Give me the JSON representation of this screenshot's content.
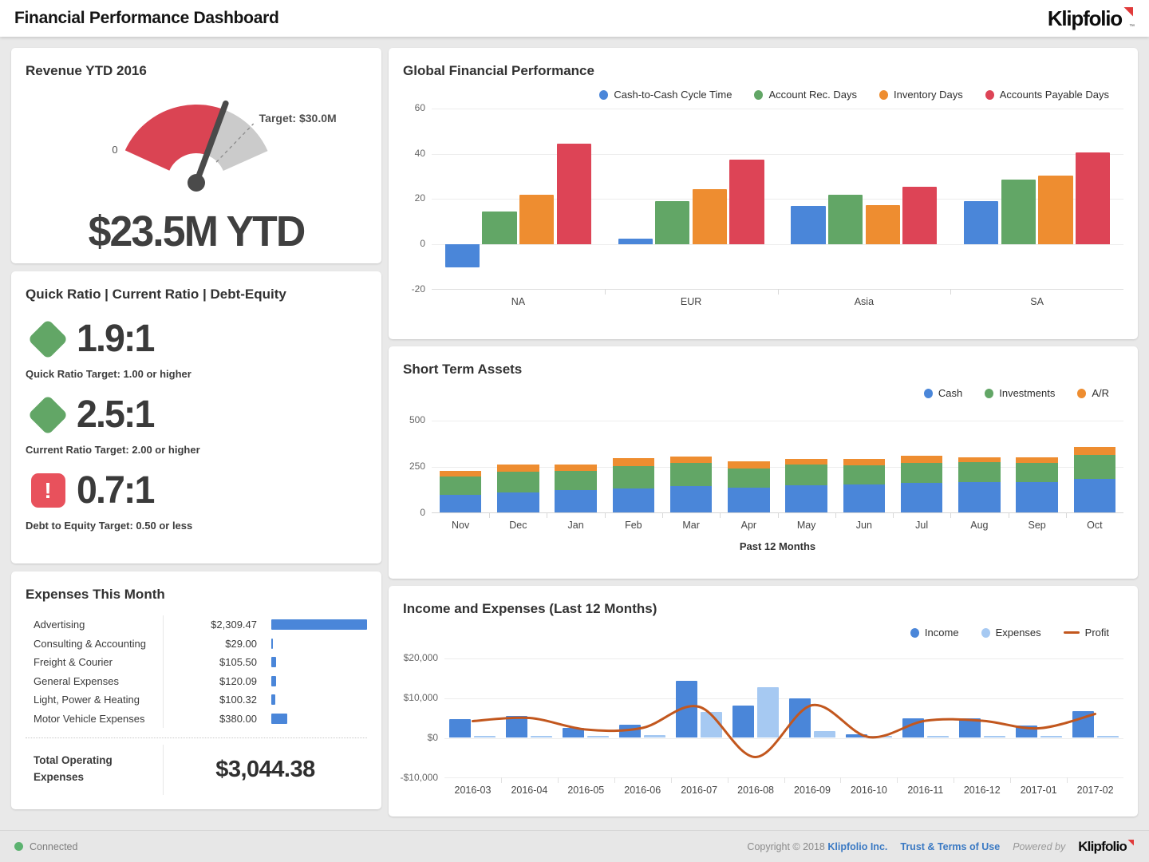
{
  "header": {
    "title": "Financial Performance Dashboard",
    "brand": "Klipfolio"
  },
  "revenue_card": {
    "title": "Revenue YTD 2016",
    "gauge": {
      "zero_label": "0",
      "target_label": "Target: $30.0M",
      "value_text": "$23.5M YTD",
      "value": 23.5,
      "target": 30,
      "max": 36
    }
  },
  "ratios_card": {
    "title": "Quick Ratio | Current Ratio | Debt-Equity",
    "items": [
      {
        "icon": "diamond",
        "value": "1.9:1",
        "caption": "Quick Ratio Target: 1.00 or higher"
      },
      {
        "icon": "diamond",
        "value": "2.5:1",
        "caption": "Current Ratio Target: 2.00 or higher"
      },
      {
        "icon": "alert",
        "value": "0.7:1",
        "caption": "Debt to Equity Target: 0.50 or less"
      }
    ]
  },
  "expenses_card": {
    "title": "Expenses This Month",
    "rows": [
      {
        "label": "Advertising",
        "amount": "$2,309.47",
        "value": 2309.47
      },
      {
        "label": "Consulting & Accounting",
        "amount": "$29.00",
        "value": 29.0
      },
      {
        "label": "Freight & Courier",
        "amount": "$105.50",
        "value": 105.5
      },
      {
        "label": "General Expenses",
        "amount": "$120.09",
        "value": 120.09
      },
      {
        "label": "Light, Power & Heating",
        "amount": "$100.32",
        "value": 100.32
      },
      {
        "label": "Motor Vehicle Expenses",
        "amount": "$380.00",
        "value": 380.0
      }
    ],
    "total_label": "Total Operating Expenses",
    "total_amount": "$3,044.38"
  },
  "chart_data": [
    {
      "id": "global",
      "type": "bar",
      "title": "Global Financial Performance",
      "categories": [
        "NA",
        "EUR",
        "Asia",
        "SA"
      ],
      "series": [
        {
          "name": "Cash-to-Cash Cycle Time",
          "color": "#4a86d9",
          "values": [
            -10,
            2.5,
            17,
            19
          ]
        },
        {
          "name": "Account Rec. Days",
          "color": "#62a666",
          "values": [
            14.5,
            19,
            22,
            28.5
          ]
        },
        {
          "name": "Inventory Days",
          "color": "#ee8d30",
          "values": [
            22,
            24.5,
            17.5,
            30.5
          ]
        },
        {
          "name": "Accounts Payable Days",
          "color": "#dd4456",
          "values": [
            44.5,
            37.5,
            25.5,
            40.5
          ]
        }
      ],
      "ylim": [
        -20,
        60
      ],
      "yticks": [
        60,
        40,
        20,
        0,
        -20
      ],
      "grid": true,
      "legend_position": "top-right"
    },
    {
      "id": "assets",
      "type": "stacked-bar",
      "title": "Short Term Assets",
      "xlabel": "Past 12 Months",
      "categories": [
        "Nov",
        "Dec",
        "Jan",
        "Feb",
        "Mar",
        "Apr",
        "May",
        "Jun",
        "Jul",
        "Aug",
        "Sep",
        "Oct"
      ],
      "series": [
        {
          "name": "Cash",
          "color": "#4a86d9",
          "values": [
            95,
            108,
            118,
            130,
            140,
            135,
            145,
            150,
            158,
            163,
            165,
            180
          ]
        },
        {
          "name": "Investments",
          "color": "#62a666",
          "values": [
            100,
            112,
            107,
            120,
            125,
            103,
            112,
            105,
            107,
            107,
            100,
            130
          ]
        },
        {
          "name": "A/R",
          "color": "#ee8d30",
          "values": [
            30,
            38,
            33,
            40,
            35,
            38,
            30,
            32,
            40,
            28,
            33,
            42
          ]
        }
      ],
      "ylim": [
        0,
        550
      ],
      "yticks": [
        500,
        250,
        0
      ],
      "grid": true,
      "legend_position": "top-right"
    },
    {
      "id": "income",
      "type": "bar+line",
      "title": "Income and Expenses (Last 12 Months)",
      "categories": [
        "2016-03",
        "2016-04",
        "2016-05",
        "2016-06",
        "2016-07",
        "2016-08",
        "2016-09",
        "2016-10",
        "2016-11",
        "2016-12",
        "2017-01",
        "2017-02"
      ],
      "series": [
        {
          "name": "Income",
          "type": "bar",
          "color": "#4a86d9",
          "values": [
            4600,
            5400,
            2400,
            3100,
            14200,
            8000,
            9800,
            700,
            4800,
            4800,
            2900,
            6500
          ]
        },
        {
          "name": "Expenses",
          "type": "bar",
          "color": "#a6c9f2",
          "values": [
            400,
            400,
            400,
            500,
            6300,
            12600,
            1500,
            400,
            400,
            400,
            400,
            400
          ]
        },
        {
          "name": "Profit",
          "type": "line",
          "color": "#c2571e",
          "values": [
            4300,
            5100,
            2200,
            2600,
            7900,
            -4700,
            8300,
            300,
            4400,
            4400,
            2500,
            6100
          ]
        }
      ],
      "ylim": [
        -10000,
        22800
      ],
      "yticks": [
        {
          "v": 20000,
          "label": "$20,000"
        },
        {
          "v": 10000,
          "label": "$10,000"
        },
        {
          "v": 0,
          "label": "$0"
        },
        {
          "v": -10000,
          "label": "-$10,000"
        }
      ],
      "grid": true,
      "legend_position": "top-right"
    }
  ],
  "colors": {
    "blue": "#4a86d9",
    "green": "#62a666",
    "orange": "#ee8d30",
    "red": "#dd4456",
    "light_blue": "#a6c9f2",
    "profit_line": "#c2571e",
    "gauge_red": "#da4453",
    "gauge_gray": "#cbcbcb",
    "needle": "#4a4a4a",
    "status_green": "#5cb270",
    "link_blue": "#3a79c3",
    "logo_red": "#e03a3a"
  },
  "footer": {
    "status": "Connected",
    "copyright_prefix": "Copyright © 2018",
    "company": "Klipfolio Inc.",
    "terms": "Trust & Terms of Use",
    "powered_by": "Powered by",
    "brand": "Klipfolio"
  }
}
